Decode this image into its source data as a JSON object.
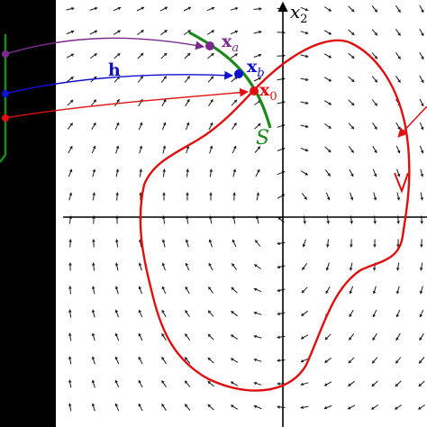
{
  "figure": {
    "labels": {
      "x2": "x",
      "x2_sub": "2",
      "xa": "x",
      "xa_sub": "a",
      "xb": "x",
      "xb_sub": "b",
      "x0": "x",
      "x0_sub": "0",
      "h": "h",
      "S": "S"
    },
    "colors": {
      "background_left": "#000000",
      "panel": "#ffffff",
      "axes": "#000000",
      "field_arrows": "#1a1a1a",
      "trajectory": "#e01010",
      "section_S": "#1a8a1a",
      "xa_point": "#7a2a8a",
      "xb_point": "#1010d0",
      "x0_point": "#e01010",
      "h_label": "#1010b0"
    },
    "icons": [
      "vector-field-arrow-icon",
      "trajectory-direction-arrow-icon"
    ]
  }
}
